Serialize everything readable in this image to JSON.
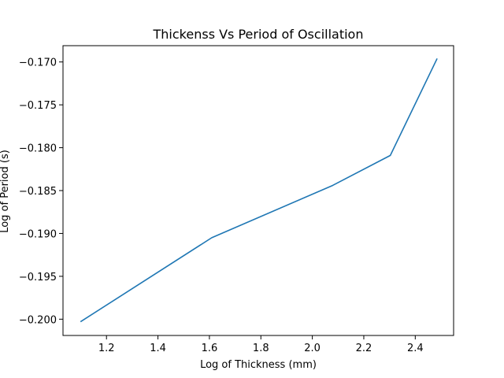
{
  "chart_data": {
    "type": "line",
    "title": "Thickenss Vs Period of Oscillation",
    "xlabel": "Log of Thickness (mm)",
    "ylabel": "Log of Period (s)",
    "xlim": [
      1.031,
      2.549
    ],
    "ylim": [
      -0.2019,
      -0.1681
    ],
    "xticks": [
      1.2,
      1.4,
      1.6,
      1.8,
      2.0,
      2.2,
      2.4
    ],
    "xtick_labels": [
      "1.2",
      "1.4",
      "1.6",
      "1.8",
      "2.0",
      "2.2",
      "2.4"
    ],
    "yticks": [
      -0.2,
      -0.195,
      -0.19,
      -0.185,
      -0.18,
      -0.175,
      -0.17
    ],
    "ytick_labels": [
      "−0.200",
      "−0.195",
      "−0.190",
      "−0.185",
      "−0.180",
      "−0.175",
      "−0.170"
    ],
    "grid": false,
    "series": [
      {
        "color": "#1f77b4",
        "x": [
          1.099,
          1.609,
          2.079,
          2.303,
          2.485
        ],
        "y": [
          -0.2003,
          -0.1905,
          -0.1844,
          -0.1809,
          -0.1696
        ]
      }
    ]
  }
}
